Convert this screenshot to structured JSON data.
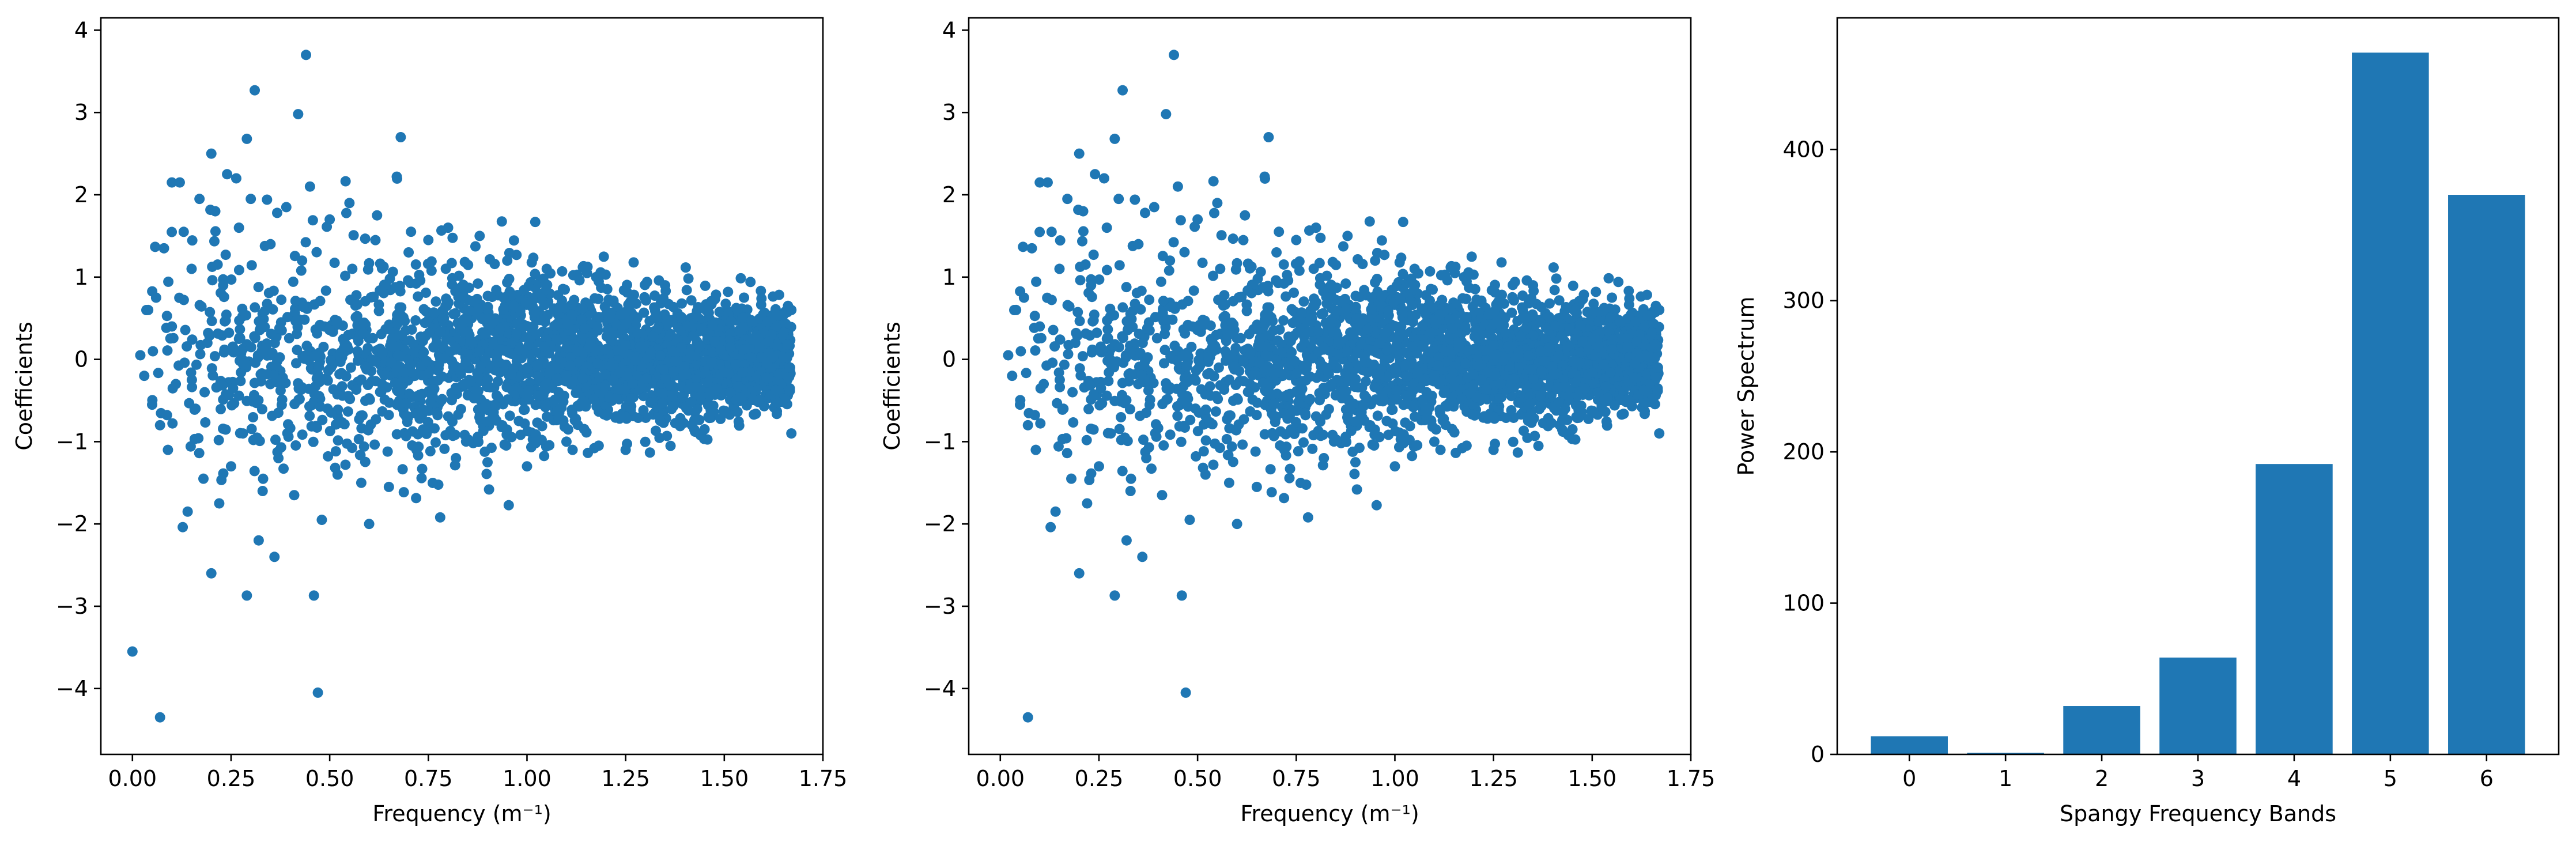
{
  "chart_data": [
    {
      "type": "scatter",
      "xlabel": "Frequency (m⁻¹)",
      "ylabel": "Coefficients",
      "xlim": [
        -0.08,
        1.75
      ],
      "ylim": [
        -4.8,
        4.15
      ],
      "xticks": [
        "0.00",
        "0.25",
        "0.50",
        "0.75",
        "1.00",
        "1.25",
        "1.50",
        "1.75"
      ],
      "yticks": [
        "−4",
        "−3",
        "−2",
        "−1",
        "0",
        "1",
        "2",
        "3",
        "4"
      ],
      "color": "#1f77b4",
      "points": [
        [
          0.0,
          -3.55
        ],
        [
          0.07,
          -4.35
        ],
        [
          0.44,
          3.7
        ],
        [
          0.31,
          3.27
        ],
        [
          0.42,
          2.98
        ],
        [
          0.47,
          -4.05
        ],
        [
          0.46,
          -2.87
        ],
        [
          0.29,
          -2.87
        ],
        [
          0.2,
          -2.6
        ],
        [
          0.68,
          2.7
        ],
        [
          0.29,
          2.68
        ],
        [
          0.2,
          2.5
        ],
        [
          0.24,
          2.25
        ],
        [
          0.32,
          -2.2
        ],
        [
          0.36,
          -2.4
        ],
        [
          0.45,
          2.1
        ],
        [
          0.67,
          2.22
        ],
        [
          0.1,
          2.15
        ],
        [
          0.12,
          2.15
        ],
        [
          0.6,
          -2.0
        ],
        [
          0.78,
          -1.92
        ],
        [
          0.02,
          0.05
        ],
        [
          0.03,
          -0.2
        ],
        [
          0.04,
          0.6
        ],
        [
          0.05,
          -0.55
        ],
        [
          0.06,
          0.75
        ],
        [
          0.07,
          -0.8
        ],
        [
          0.08,
          1.35
        ],
        [
          0.09,
          -1.1
        ],
        [
          0.1,
          0.4
        ],
        [
          0.11,
          -0.3
        ],
        [
          0.13,
          1.55
        ],
        [
          0.14,
          -1.85
        ],
        [
          0.15,
          1.1
        ],
        [
          0.16,
          -0.6
        ],
        [
          0.17,
          1.95
        ],
        [
          0.18,
          -1.45
        ],
        [
          0.19,
          0.2
        ],
        [
          0.21,
          1.8
        ],
        [
          0.22,
          -1.75
        ],
        [
          0.23,
          0.9
        ],
        [
          0.25,
          -1.3
        ],
        [
          0.27,
          1.6
        ],
        [
          0.28,
          -0.9
        ],
        [
          0.3,
          1.95
        ],
        [
          0.33,
          -1.6
        ],
        [
          0.35,
          1.4
        ],
        [
          0.37,
          -1.2
        ],
        [
          0.39,
          1.85
        ],
        [
          0.41,
          -1.65
        ],
        [
          0.43,
          1.2
        ],
        [
          0.48,
          -1.95
        ],
        [
          0.5,
          1.7
        ],
        [
          0.52,
          -1.4
        ],
        [
          0.55,
          1.9
        ],
        [
          0.58,
          -1.5
        ],
        [
          0.62,
          1.75
        ],
        [
          0.65,
          -1.55
        ],
        [
          0.7,
          1.3
        ],
        [
          0.72,
          -1.1
        ],
        [
          0.75,
          1.45
        ],
        [
          0.8,
          1.6
        ],
        [
          0.82,
          -1.2
        ],
        [
          0.88,
          1.5
        ],
        [
          0.9,
          -1.25
        ],
        [
          0.95,
          1.2
        ],
        [
          1.0,
          -1.3
        ],
        [
          1.05,
          1.1
        ],
        [
          1.1,
          -1.0
        ],
        [
          1.15,
          1.1
        ],
        [
          1.25,
          -1.1
        ],
        [
          1.35,
          0.9
        ],
        [
          1.45,
          -0.85
        ],
        [
          1.55,
          0.75
        ],
        [
          1.67,
          -0.9
        ],
        [
          1.67,
          0.6
        ]
      ]
    },
    {
      "type": "scatter",
      "xlabel": "Frequency (m⁻¹)",
      "ylabel": "Coefficients",
      "xlim": [
        -0.08,
        1.75
      ],
      "ylim": [
        -4.8,
        4.15
      ],
      "xticks": [
        "0.00",
        "0.25",
        "0.50",
        "0.75",
        "1.00",
        "1.25",
        "1.50",
        "1.75"
      ],
      "yticks": [
        "−4",
        "−3",
        "−2",
        "−1",
        "0",
        "1",
        "2",
        "3",
        "4"
      ],
      "color": "#1f77b4",
      "points": [
        [
          0.07,
          -4.35
        ],
        [
          0.44,
          3.7
        ],
        [
          0.31,
          3.27
        ],
        [
          0.42,
          2.98
        ],
        [
          0.47,
          -4.05
        ],
        [
          0.46,
          -2.87
        ],
        [
          0.29,
          -2.87
        ],
        [
          0.2,
          -2.6
        ],
        [
          0.68,
          2.7
        ],
        [
          0.29,
          2.68
        ],
        [
          0.2,
          2.5
        ],
        [
          0.24,
          2.25
        ],
        [
          0.32,
          -2.2
        ],
        [
          0.36,
          -2.4
        ],
        [
          0.45,
          2.1
        ],
        [
          0.67,
          2.22
        ],
        [
          0.1,
          2.15
        ],
        [
          0.12,
          2.15
        ],
        [
          0.6,
          -2.0
        ],
        [
          0.78,
          -1.92
        ],
        [
          0.02,
          0.05
        ],
        [
          0.03,
          -0.2
        ],
        [
          0.04,
          0.6
        ],
        [
          0.05,
          -0.55
        ],
        [
          0.06,
          0.75
        ],
        [
          0.07,
          -0.8
        ],
        [
          0.08,
          1.35
        ],
        [
          0.09,
          -1.1
        ],
        [
          0.1,
          0.4
        ],
        [
          0.11,
          -0.3
        ],
        [
          0.13,
          1.55
        ],
        [
          0.14,
          -1.85
        ],
        [
          0.15,
          1.1
        ],
        [
          0.16,
          -0.6
        ],
        [
          0.17,
          1.95
        ],
        [
          0.18,
          -1.45
        ],
        [
          0.19,
          0.2
        ],
        [
          0.21,
          1.8
        ],
        [
          0.22,
          -1.75
        ],
        [
          0.23,
          0.9
        ],
        [
          0.25,
          -1.3
        ],
        [
          0.27,
          1.6
        ],
        [
          0.28,
          -0.9
        ],
        [
          0.3,
          1.95
        ],
        [
          0.33,
          -1.6
        ],
        [
          0.35,
          1.4
        ],
        [
          0.37,
          -1.2
        ],
        [
          0.39,
          1.85
        ],
        [
          0.41,
          -1.65
        ],
        [
          0.43,
          1.2
        ],
        [
          0.48,
          -1.95
        ],
        [
          0.5,
          1.7
        ],
        [
          0.52,
          -1.4
        ],
        [
          0.55,
          1.9
        ],
        [
          0.58,
          -1.5
        ],
        [
          0.62,
          1.75
        ],
        [
          0.65,
          -1.55
        ],
        [
          0.7,
          1.3
        ],
        [
          0.72,
          -1.1
        ],
        [
          0.75,
          1.45
        ],
        [
          0.8,
          1.6
        ],
        [
          0.82,
          -1.2
        ],
        [
          0.88,
          1.5
        ],
        [
          0.9,
          -1.25
        ],
        [
          0.95,
          1.2
        ],
        [
          1.0,
          -1.3
        ],
        [
          1.05,
          1.1
        ],
        [
          1.1,
          -1.0
        ],
        [
          1.15,
          1.1
        ],
        [
          1.25,
          -1.1
        ],
        [
          1.35,
          0.9
        ],
        [
          1.45,
          -0.85
        ],
        [
          1.55,
          0.75
        ],
        [
          1.67,
          -0.9
        ],
        [
          1.67,
          0.6
        ]
      ]
    },
    {
      "type": "bar",
      "xlabel": "Spangy Frequency Bands",
      "ylabel": "Power Spectrum",
      "categories": [
        "0",
        "1",
        "2",
        "3",
        "4",
        "5",
        "6"
      ],
      "values": [
        12,
        1,
        32,
        64,
        192,
        464,
        370
      ],
      "ylim": [
        0,
        487
      ],
      "yticks": [
        "0",
        "100",
        "200",
        "300",
        "400"
      ],
      "color": "#1f77b4"
    }
  ]
}
